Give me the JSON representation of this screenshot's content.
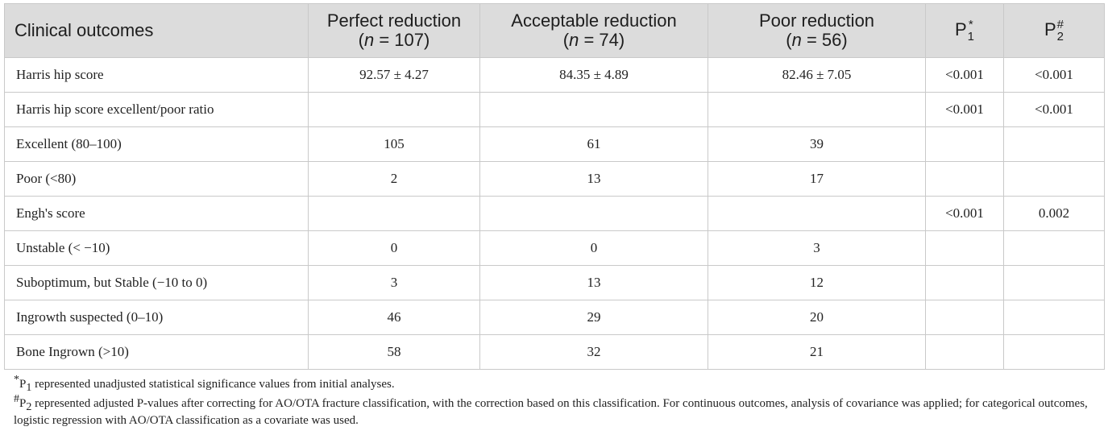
{
  "table": {
    "headers": [
      {
        "main": "Clinical outcomes",
        "sub": ""
      },
      {
        "main": "Perfect reduction",
        "sub_n": "n",
        "sub_rest": " = 107)"
      },
      {
        "main": "Acceptable reduction",
        "sub_n": "n",
        "sub_rest": " = 74)"
      },
      {
        "main": "Poor reduction",
        "sub_n": "n",
        "sub_rest": " = 56)"
      },
      {
        "main": "P",
        "sup": "*",
        "sub": "1"
      },
      {
        "main": "P",
        "sup": "#",
        "sub": "2"
      }
    ],
    "rows": [
      [
        "Harris hip score",
        "92.57 ± 4.27",
        "84.35 ± 4.89",
        "82.46 ± 7.05",
        "<0.001",
        "<0.001"
      ],
      [
        "Harris hip score excellent/poor ratio",
        "",
        "",
        "",
        "<0.001",
        "<0.001"
      ],
      [
        "Excellent (80–100)",
        "105",
        "61",
        "39",
        "",
        ""
      ],
      [
        "Poor (<80)",
        "2",
        "13",
        "17",
        "",
        ""
      ],
      [
        "Engh's score",
        "",
        "",
        "",
        "<0.001",
        "0.002"
      ],
      [
        "Unstable (< −10)",
        "0",
        "0",
        "3",
        "",
        ""
      ],
      [
        "Suboptimum, but Stable (−10 to 0)",
        "3",
        "13",
        "12",
        "",
        ""
      ],
      [
        "Ingrowth suspected (0–10)",
        "46",
        "29",
        "20",
        "",
        ""
      ],
      [
        "Bone Ingrown (>10)",
        "58",
        "32",
        "21",
        "",
        ""
      ]
    ]
  },
  "notes": {
    "note1": {
      "mark": "*",
      "p": "P",
      "sub": "1",
      "text": " represented unadjusted statistical significance values from initial analyses."
    },
    "note2": {
      "mark": "#",
      "p": "P",
      "sub": "2",
      "text": " represented adjusted P-values after correcting for AO/OTA fracture classification, with the correction based on this classification. For continuous outcomes, analysis of covariance was applied; for categorical outcomes, logistic regression with AO/OTA classification as a covariate was used."
    }
  }
}
